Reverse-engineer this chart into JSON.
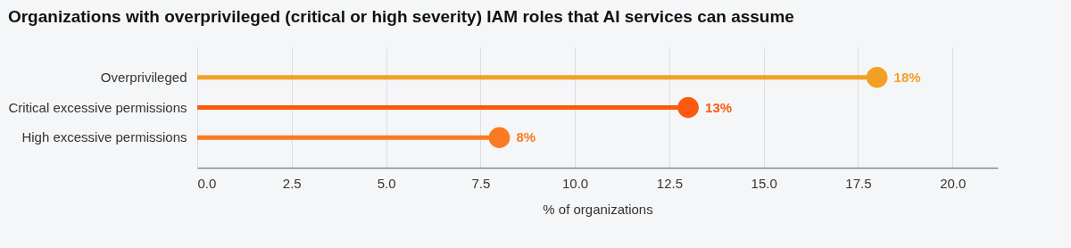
{
  "chart_data": {
    "type": "lollipop",
    "orientation": "horizontal",
    "title": "Organizations with overprivileged (critical or high severity) IAM roles that AI services can assume",
    "xlabel": "% of organizations",
    "categories": [
      "Overprivileged",
      "Critical excessive permissions",
      "High excessive permissions"
    ],
    "values": [
      18,
      13,
      8
    ],
    "value_labels": [
      "18%",
      "13%",
      "8%"
    ],
    "colors": [
      "#f2a024",
      "#fb5a0e",
      "#f97a22"
    ],
    "xlim": [
      0,
      21.2
    ],
    "xticks": [
      {
        "value": 0,
        "label": "0.0"
      },
      {
        "value": 2.5,
        "label": "2.5"
      },
      {
        "value": 5,
        "label": "5.0"
      },
      {
        "value": 7.5,
        "label": "7.5"
      },
      {
        "value": 10,
        "label": "10.0"
      },
      {
        "value": 12.5,
        "label": "12.5"
      },
      {
        "value": 15,
        "label": "15.0"
      },
      {
        "value": 17.5,
        "label": "17.5"
      },
      {
        "value": 20,
        "label": "20.0"
      }
    ],
    "grid": "x",
    "marker": "circle"
  }
}
